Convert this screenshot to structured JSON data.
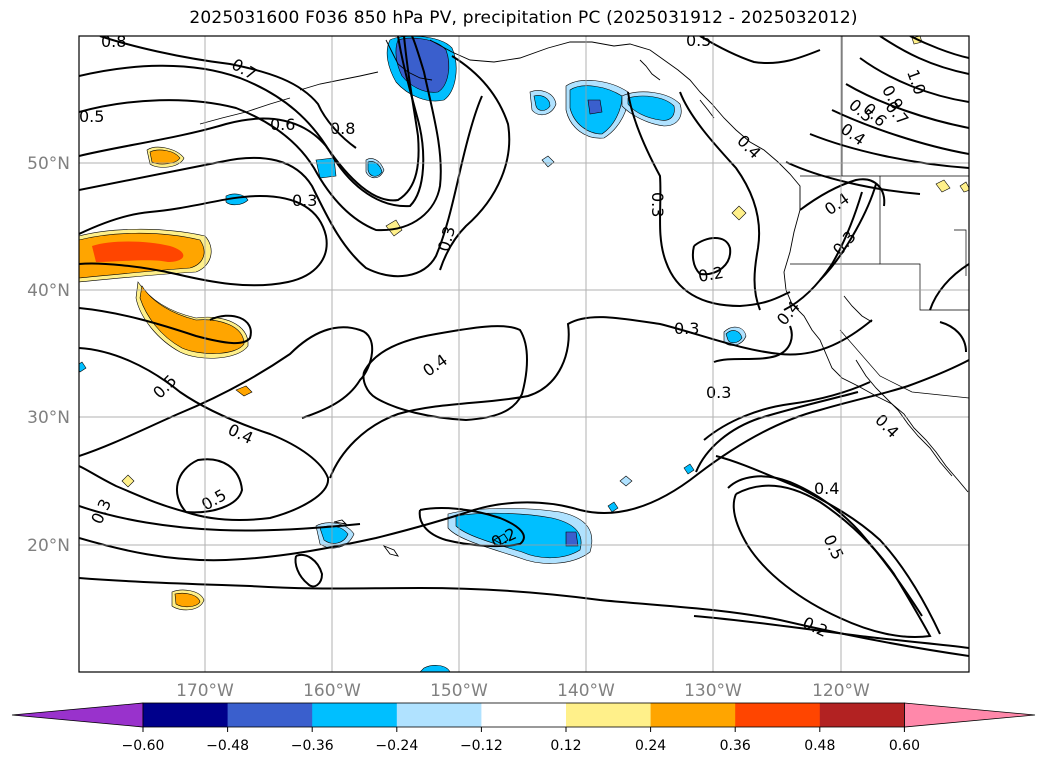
{
  "title": "2025031600 F036 850 hPa PV, precipitation PC (2025031912 - 2025032012)",
  "map": {
    "lat_labels": [
      "50°N",
      "40°N",
      "30°N",
      "20°N"
    ],
    "lon_labels": [
      "170°W",
      "160°W",
      "150°W",
      "140°W",
      "130°W",
      "120°W"
    ],
    "contour_labels": [
      "0.8",
      "0.5",
      "0.7",
      "0.6",
      "0.8",
      "0.5",
      "0.3",
      "0.3",
      "0.3",
      "0.2",
      "0.4",
      "0.3",
      "0.3",
      "0.5",
      "0.4",
      "0.5",
      "0.3",
      "0.2",
      "0.4",
      "0.4",
      "0.5",
      "0.2",
      "1.0",
      "0.9",
      "0.7",
      "0.6",
      "0.5",
      "0.4",
      "0.4",
      "0.3",
      "0.4",
      "0.4"
    ]
  },
  "colorbar": {
    "tick_labels": [
      "−0.60",
      "−0.48",
      "−0.36",
      "−0.24",
      "−0.12",
      "0.12",
      "0.24",
      "0.36",
      "0.48",
      "0.60"
    ],
    "colors": [
      "#9932cc",
      "#00008b",
      "#3a5fcd",
      "#00bfff",
      "#b0e2ff",
      "#ffffff",
      "#fff08a",
      "#ffa500",
      "#ff4500",
      "#b22222",
      "#ff88aa"
    ]
  }
}
